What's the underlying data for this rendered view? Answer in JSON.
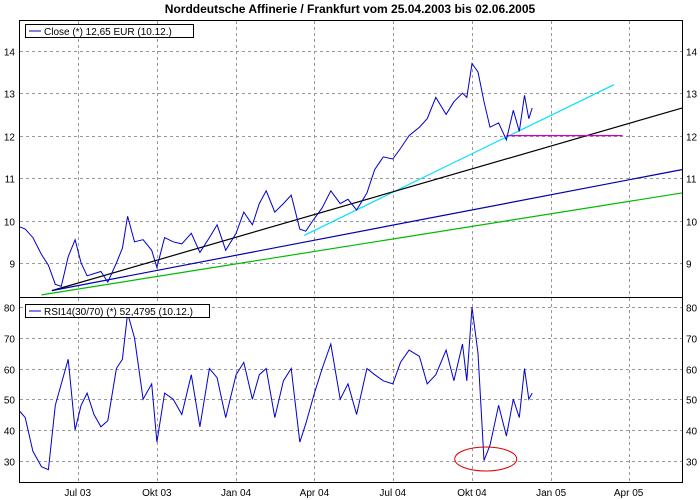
{
  "chart_data": [
    {
      "type": "line",
      "title": "Norddeutsche Affinerie / Frankfurt vom 25.04.2003 bis 02.06.2005",
      "legend": {
        "label": "Close (*) 12,65 EUR (10.12.)",
        "placement": "top-left"
      },
      "x_range": [
        "2003-04-25",
        "2005-06-02"
      ],
      "x_ticks": [
        {
          "date": "2003-07-01",
          "label": "Jul 03"
        },
        {
          "date": "2003-10-01",
          "label": "Okt 03"
        },
        {
          "date": "2004-01-01",
          "label": "Jan 04"
        },
        {
          "date": "2004-04-01",
          "label": "Apr 04"
        },
        {
          "date": "2004-07-01",
          "label": "Jul 04"
        },
        {
          "date": "2004-10-01",
          "label": "Okt 04"
        },
        {
          "date": "2005-01-01",
          "label": "Jan 05"
        },
        {
          "date": "2005-04-01",
          "label": "Apr 05"
        }
      ],
      "ylim": [
        8.2,
        14.7
      ],
      "y_ticks": [
        9,
        10,
        11,
        12,
        13,
        14
      ],
      "grid": true,
      "series": [
        {
          "color": "#0000cc",
          "x": [
            "2003-04-25",
            "2003-05-01",
            "2003-05-10",
            "2003-05-20",
            "2003-05-28",
            "2003-06-05",
            "2003-06-12",
            "2003-06-20",
            "2003-06-28",
            "2003-07-05",
            "2003-07-12",
            "2003-07-20",
            "2003-07-28",
            "2003-08-05",
            "2003-08-15",
            "2003-08-22",
            "2003-08-28",
            "2003-09-05",
            "2003-09-15",
            "2003-09-25",
            "2003-10-01",
            "2003-10-10",
            "2003-10-20",
            "2003-10-30",
            "2003-11-10",
            "2003-11-20",
            "2003-12-01",
            "2003-12-10",
            "2003-12-20",
            "2004-01-01",
            "2004-01-10",
            "2004-01-20",
            "2004-01-28",
            "2004-02-05",
            "2004-02-15",
            "2004-02-25",
            "2004-03-05",
            "2004-03-15",
            "2004-03-22",
            "2004-04-01",
            "2004-04-10",
            "2004-04-20",
            "2004-05-01",
            "2004-05-10",
            "2004-05-20",
            "2004-06-01",
            "2004-06-10",
            "2004-06-20",
            "2004-07-01",
            "2004-07-10",
            "2004-07-20",
            "2004-08-01",
            "2004-08-10",
            "2004-08-20",
            "2004-09-01",
            "2004-09-10",
            "2004-09-20",
            "2004-09-25",
            "2004-10-01",
            "2004-10-08",
            "2004-10-15",
            "2004-10-22",
            "2004-11-01",
            "2004-11-10",
            "2004-11-18",
            "2004-11-25",
            "2004-12-01",
            "2004-12-06",
            "2004-12-10"
          ],
          "y": [
            9.85,
            9.8,
            9.6,
            9.2,
            8.95,
            8.5,
            8.45,
            9.15,
            9.55,
            9.0,
            8.7,
            8.75,
            8.8,
            8.55,
            9.0,
            9.35,
            10.1,
            9.5,
            9.55,
            9.3,
            8.9,
            9.6,
            9.5,
            9.45,
            9.7,
            9.25,
            9.6,
            9.9,
            9.3,
            9.7,
            10.2,
            9.9,
            10.4,
            10.7,
            10.2,
            10.4,
            10.6,
            9.8,
            9.75,
            10.05,
            10.3,
            10.7,
            10.4,
            10.5,
            10.25,
            10.65,
            11.2,
            11.5,
            11.45,
            11.7,
            12.0,
            12.2,
            12.4,
            12.9,
            12.5,
            12.8,
            13.0,
            12.9,
            13.7,
            13.5,
            12.8,
            12.2,
            12.3,
            11.9,
            12.6,
            12.1,
            12.95,
            12.4,
            12.65
          ]
        }
      ],
      "trendlines": [
        {
          "color": "#00e0ff",
          "x": [
            "2004-03-20",
            "2005-03-15"
          ],
          "y": [
            9.65,
            13.2
          ]
        },
        {
          "color": "#000000",
          "x": [
            "2003-06-01",
            "2005-06-02"
          ],
          "y": [
            8.35,
            12.65
          ]
        },
        {
          "color": "#0000aa",
          "x": [
            "2003-06-01",
            "2005-06-02"
          ],
          "y": [
            8.35,
            11.2
          ]
        },
        {
          "color": "#00bb00",
          "x": [
            "2003-05-20",
            "2005-06-02"
          ],
          "y": [
            8.25,
            10.65
          ]
        },
        {
          "color": "#cc00cc",
          "x": [
            "2004-11-10",
            "2005-03-25"
          ],
          "y": [
            12.0,
            12.0
          ]
        }
      ]
    },
    {
      "type": "line",
      "legend": {
        "label": "RSI14(30/70) (*) 52,4795 (10.12.)",
        "placement": "top-left"
      },
      "x_range": [
        "2003-04-25",
        "2005-06-02"
      ],
      "ylim": [
        23,
        83
      ],
      "y_ticks": [
        30,
        40,
        50,
        60,
        70,
        80
      ],
      "grid": true,
      "series": [
        {
          "color": "#0000cc",
          "x": [
            "2003-04-25",
            "2003-05-01",
            "2003-05-10",
            "2003-05-20",
            "2003-05-28",
            "2003-06-05",
            "2003-06-12",
            "2003-06-20",
            "2003-06-28",
            "2003-07-05",
            "2003-07-12",
            "2003-07-20",
            "2003-07-28",
            "2003-08-05",
            "2003-08-15",
            "2003-08-22",
            "2003-08-28",
            "2003-09-05",
            "2003-09-15",
            "2003-09-25",
            "2003-10-01",
            "2003-10-10",
            "2003-10-20",
            "2003-10-30",
            "2003-11-10",
            "2003-11-20",
            "2003-12-01",
            "2003-12-10",
            "2003-12-20",
            "2004-01-01",
            "2004-01-10",
            "2004-01-20",
            "2004-01-28",
            "2004-02-05",
            "2004-02-15",
            "2004-02-25",
            "2004-03-05",
            "2004-03-15",
            "2004-03-22",
            "2004-04-01",
            "2004-04-10",
            "2004-04-20",
            "2004-05-01",
            "2004-05-10",
            "2004-05-20",
            "2004-06-01",
            "2004-06-10",
            "2004-06-20",
            "2004-07-01",
            "2004-07-10",
            "2004-07-20",
            "2004-08-01",
            "2004-08-10",
            "2004-08-20",
            "2004-09-01",
            "2004-09-10",
            "2004-09-20",
            "2004-09-25",
            "2004-10-01",
            "2004-10-08",
            "2004-10-15",
            "2004-10-22",
            "2004-11-01",
            "2004-11-10",
            "2004-11-18",
            "2004-11-25",
            "2004-12-01",
            "2004-12-06",
            "2004-12-10"
          ],
          "y": [
            46,
            44,
            33,
            28,
            27,
            48,
            55,
            63,
            40,
            48,
            52,
            45,
            41,
            43,
            60,
            63,
            78,
            70,
            50,
            55,
            36,
            52,
            50,
            45,
            58,
            41,
            60,
            57,
            44,
            58,
            62,
            50,
            58,
            60,
            44,
            56,
            60,
            36,
            42,
            52,
            60,
            68,
            50,
            55,
            45,
            60,
            58,
            56,
            55,
            62,
            66,
            64,
            55,
            58,
            66,
            56,
            68,
            56,
            80,
            65,
            30,
            35,
            48,
            38,
            50,
            44,
            60,
            50,
            52
          ]
        }
      ],
      "annotation": {
        "type": "ellipse",
        "color": "#dd0000",
        "x": "2004-10-17",
        "y": 30.5
      }
    }
  ]
}
